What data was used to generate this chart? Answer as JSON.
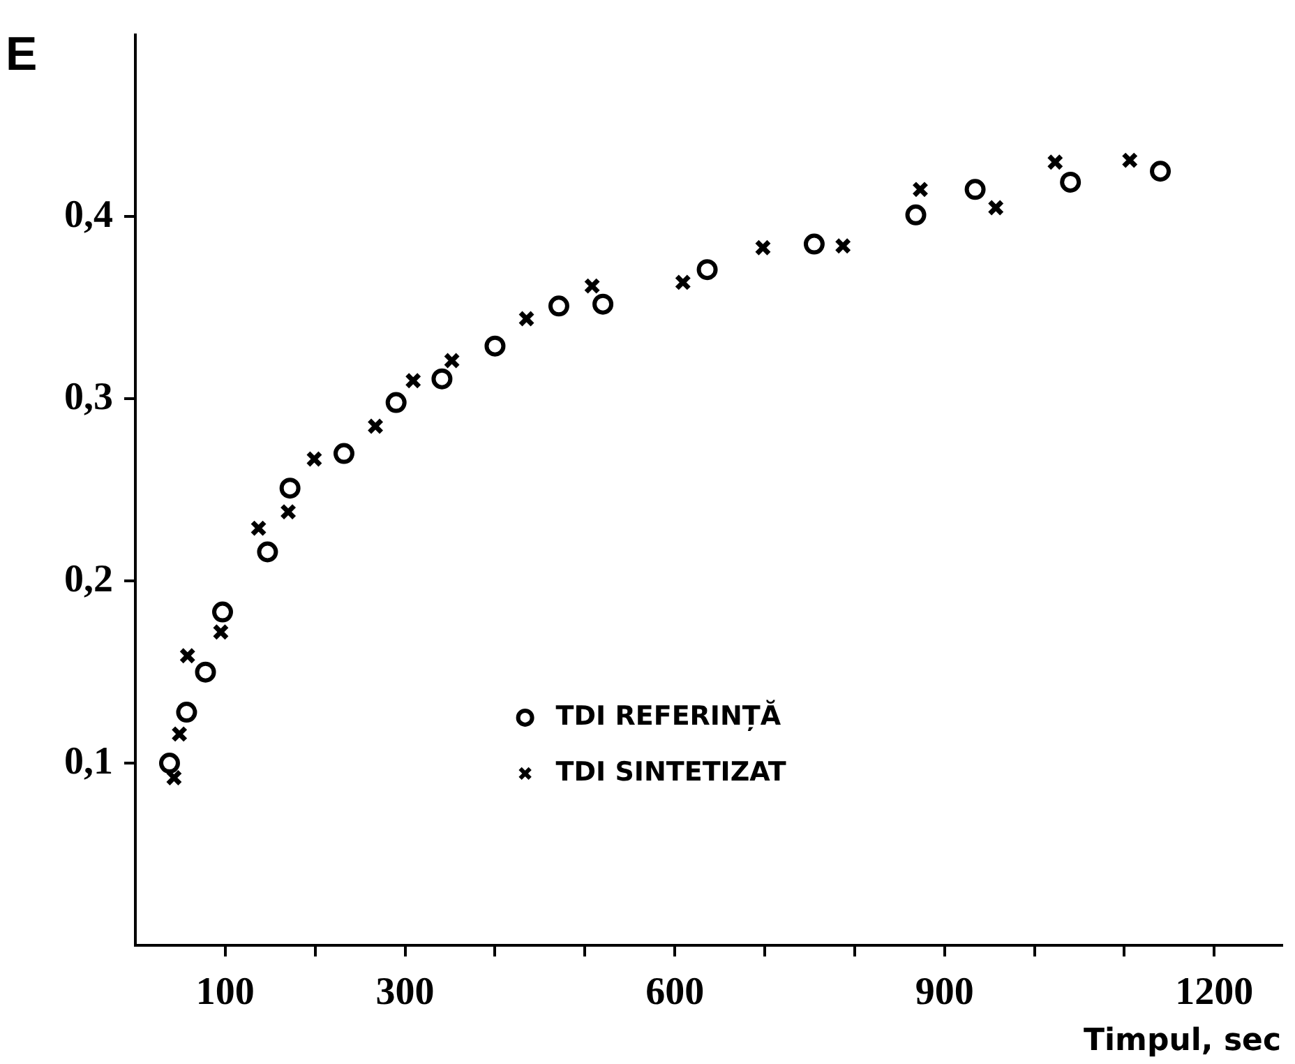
{
  "chart_data": {
    "type": "scatter",
    "xlabel": "Timpul, sec",
    "ylabel": "E",
    "xlim": [
      0,
      1275
    ],
    "ylim": [
      0,
      0.5
    ],
    "xticks": [
      100,
      {
        "value": 200,
        "label": null
      },
      300,
      {
        "value": 400,
        "label": null
      },
      {
        "value": 500,
        "label": null
      },
      600,
      {
        "value": 700,
        "label": null
      },
      {
        "value": 800,
        "label": null
      },
      900,
      {
        "value": 1000,
        "label": null
      },
      {
        "value": 1100,
        "label": null
      },
      1200
    ],
    "yticks": [
      {
        "value": 0.1,
        "label": "0,1"
      },
      {
        "value": 0.2,
        "label": "0,2"
      },
      {
        "value": 0.3,
        "label": "0,3"
      },
      {
        "value": 0.4,
        "label": "0,4"
      }
    ],
    "grid": false,
    "legend": "bottom",
    "series": [
      {
        "name": "TDI REFERINȚĂ",
        "color": "#000000",
        "marker": "circle",
        "x": [
          38,
          57,
          78,
          97,
          147,
          172,
          232,
          290,
          341,
          400,
          471,
          520,
          636,
          755,
          868,
          934,
          1040,
          1140
        ],
        "values": [
          0.1,
          0.128,
          0.15,
          0.183,
          0.216,
          0.251,
          0.27,
          0.298,
          0.311,
          0.329,
          0.351,
          0.352,
          0.371,
          0.385,
          0.401,
          0.415,
          0.419,
          0.425
        ]
      },
      {
        "name": "TDI SINTETIZAT",
        "color": "#000000",
        "marker": "cross",
        "x": [
          43,
          49,
          58,
          95,
          137,
          170,
          199,
          267,
          309,
          352,
          435,
          508,
          609,
          698,
          787,
          873,
          957,
          1023,
          1106
        ],
        "values": [
          0.092,
          0.116,
          0.159,
          0.172,
          0.229,
          0.238,
          0.267,
          0.285,
          0.31,
          0.321,
          0.344,
          0.362,
          0.364,
          0.383,
          0.384,
          0.415,
          0.405,
          0.43,
          0.431
        ]
      }
    ]
  }
}
